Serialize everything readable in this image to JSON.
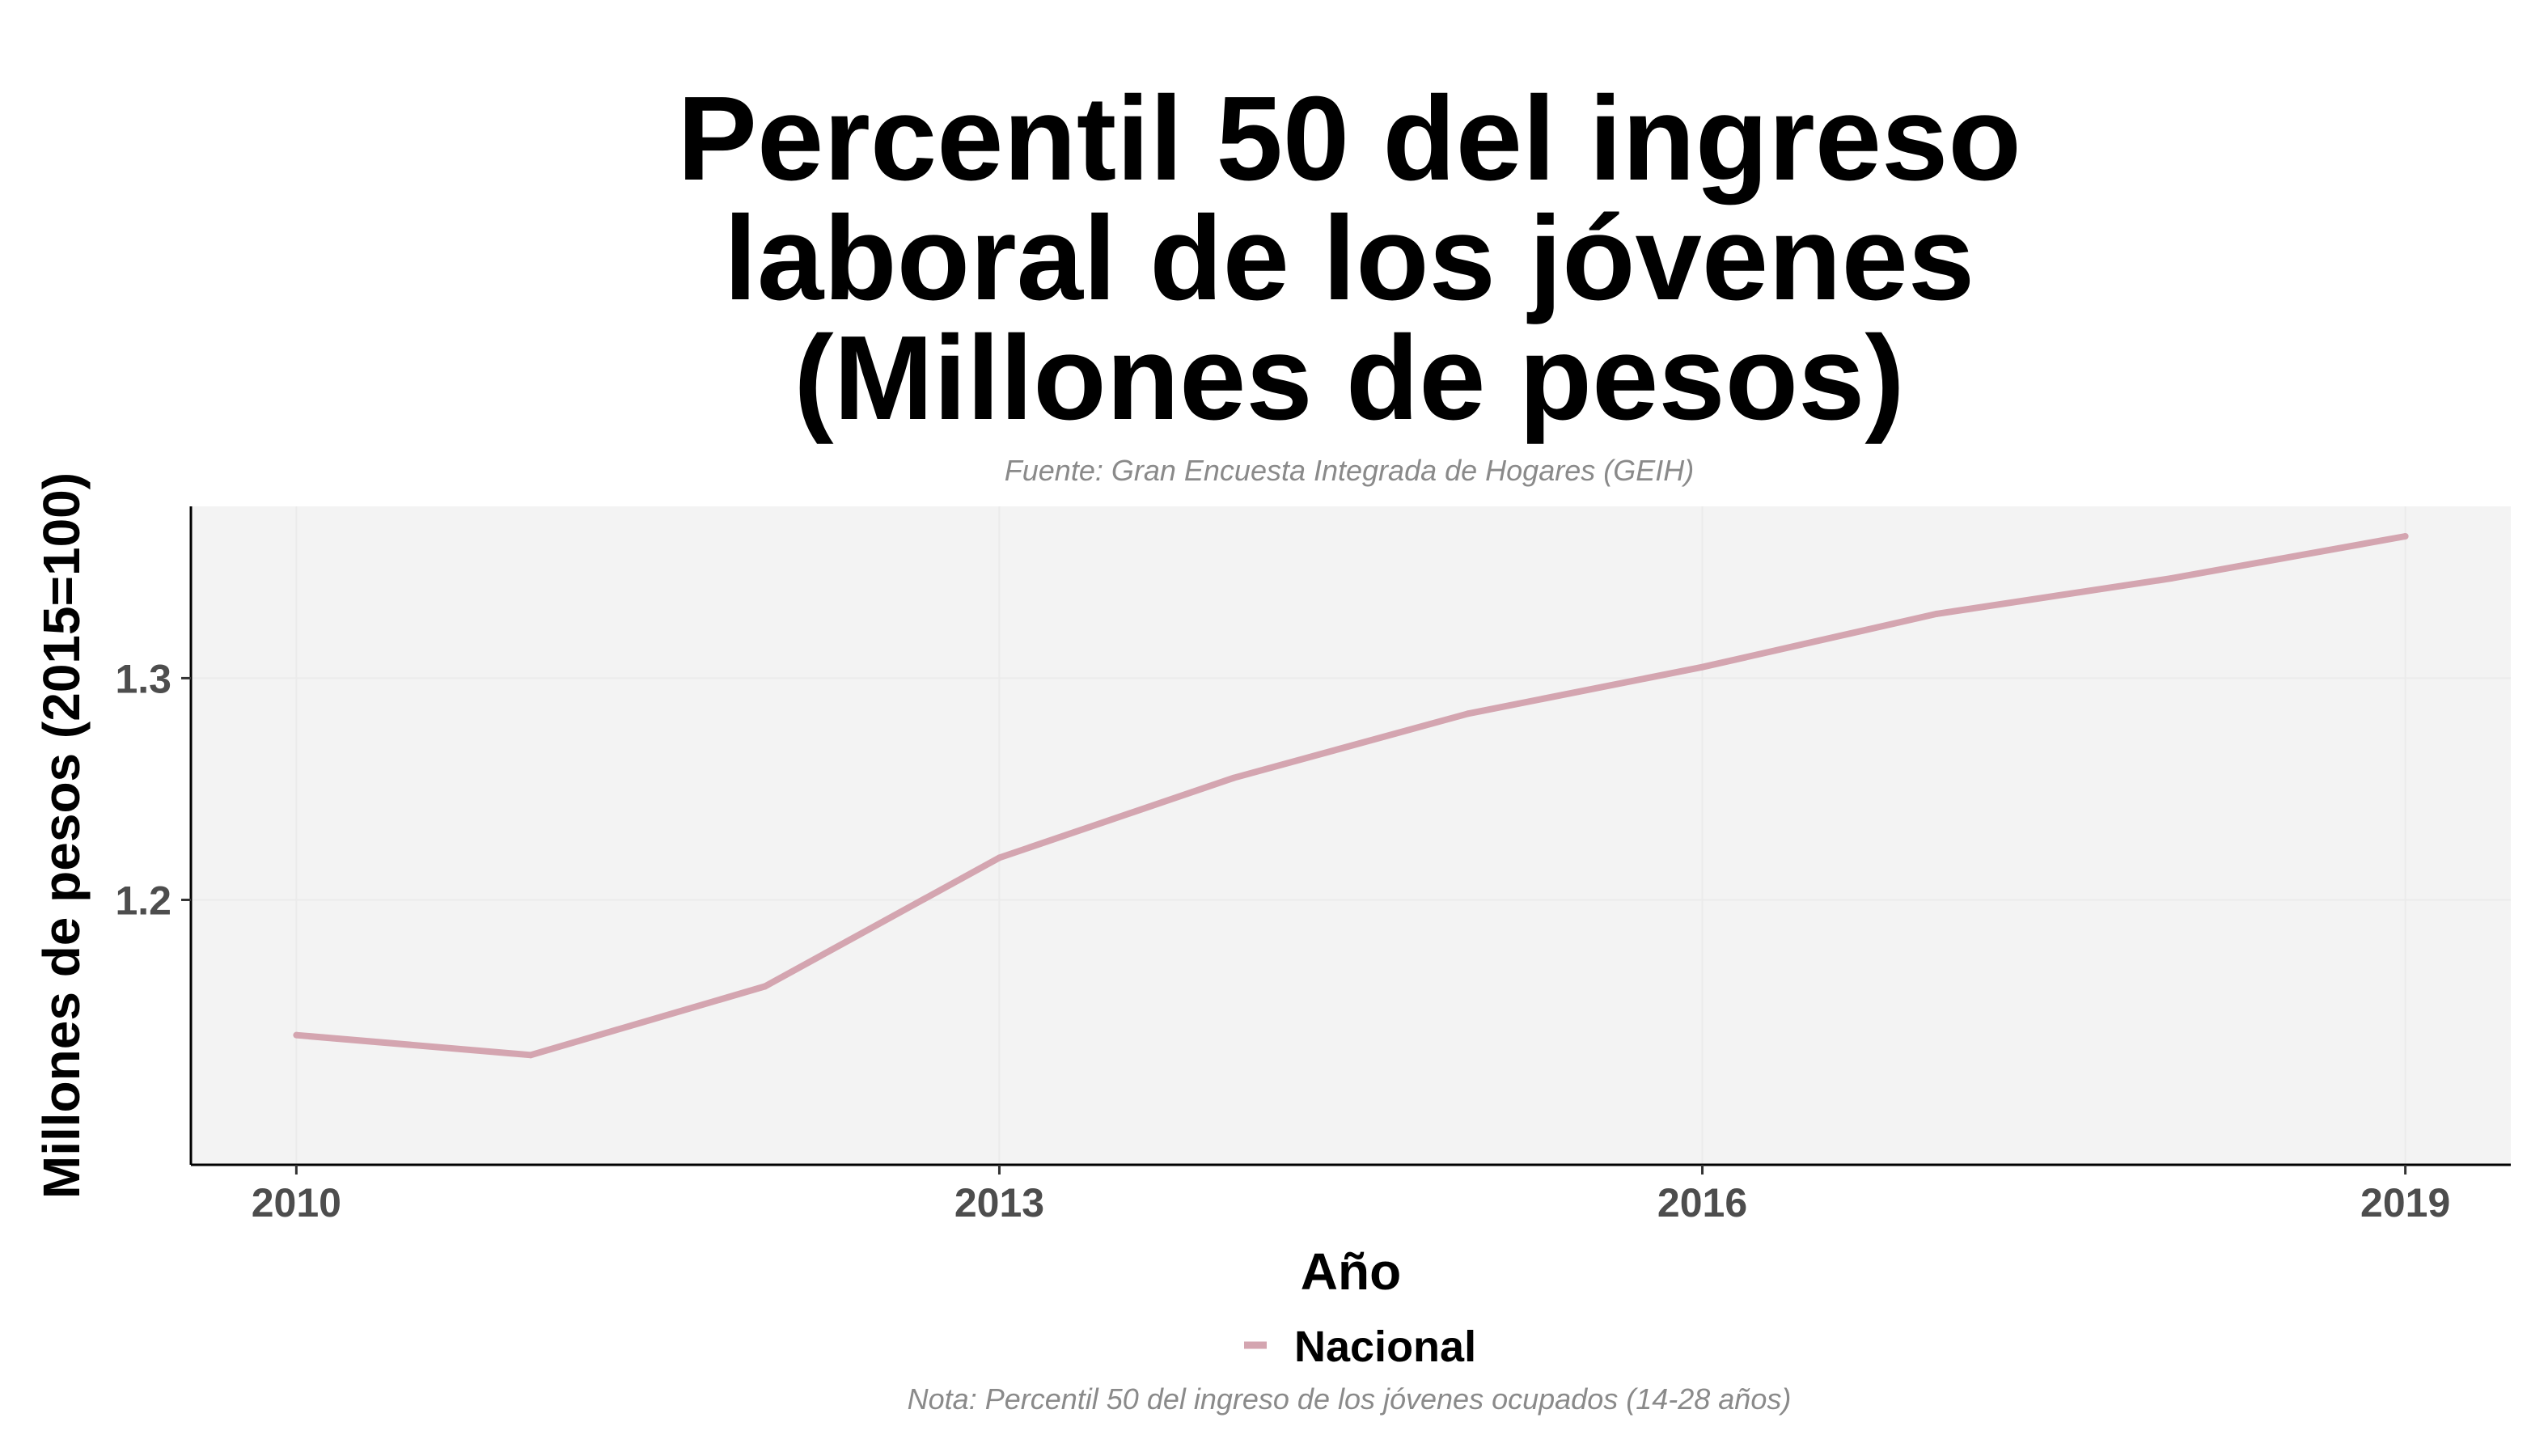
{
  "chart_data": {
    "type": "line",
    "title": [
      "Percentil 50 del ingreso",
      "laboral de los jóvenes",
      "(Millones de pesos)"
    ],
    "subtitle": "Fuente: Gran Encuesta Integrada de Hogares (GEIH)",
    "caption": "Nota: Percentil 50 del ingreso de los jóvenes ocupados (14-28 años)",
    "xlabel": "Año",
    "ylabel": "Millones de pesos (2015=100)",
    "x": [
      2010,
      2011,
      2012,
      2013,
      2014,
      2015,
      2016,
      2017,
      2018,
      2019
    ],
    "series": [
      {
        "name": "Nacional",
        "color": "#d4a5b0",
        "values": [
          1.139,
          1.13,
          1.161,
          1.219,
          1.255,
          1.284,
          1.305,
          1.329,
          1.345,
          1.364
        ]
      }
    ],
    "xlim": [
      2009.55,
      2019.45
    ],
    "ylim": [
      1.0805,
      1.3775
    ],
    "xticks": [
      2010,
      2013,
      2016,
      2019
    ],
    "xtick_labels": [
      "2010",
      "2013",
      "2016",
      "2019"
    ],
    "yticks": [
      1.2,
      1.3
    ],
    "ytick_labels": [
      "1.2",
      "1.3"
    ],
    "grid": true,
    "panel_color": "#f3f3f3",
    "grid_color": "#ebebeb",
    "legend_position": "bottom"
  }
}
